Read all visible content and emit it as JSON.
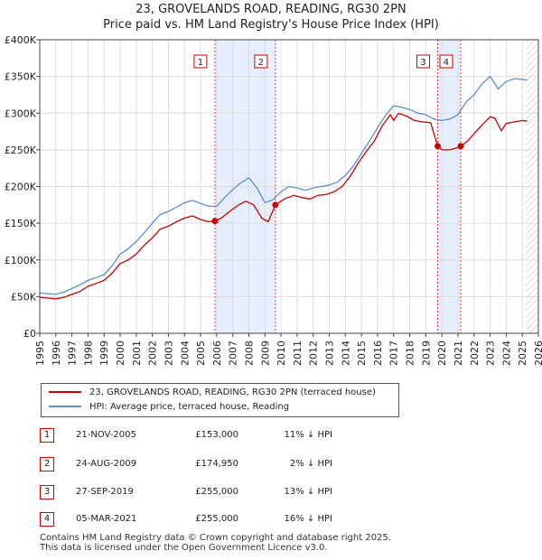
{
  "title_line1": "23, GROVELANDS ROAD, READING, RG30 2PN",
  "title_line2": "Price paid vs. HM Land Registry's House Price Index (HPI)",
  "colors": {
    "property": "#cc0000",
    "hpi": "#5b8fd0",
    "shade": "#e6eefb",
    "vline": "#dd4444",
    "grid": "#dddddd"
  },
  "chart_data": {
    "type": "line",
    "xlim": [
      1995,
      2026
    ],
    "ylim": [
      0,
      400000
    ],
    "x_ticks": [
      "1995",
      "1996",
      "1997",
      "1998",
      "1999",
      "2000",
      "2001",
      "2002",
      "2003",
      "2004",
      "2005",
      "2006",
      "2007",
      "2008",
      "2009",
      "2010",
      "2011",
      "2012",
      "2013",
      "2014",
      "2015",
      "2016",
      "2017",
      "2018",
      "2019",
      "2020",
      "2021",
      "2022",
      "2023",
      "2024",
      "2025",
      "2026"
    ],
    "y_ticks": [
      {
        "value": 0,
        "label": "£0"
      },
      {
        "value": 50000,
        "label": "£50K"
      },
      {
        "value": 100000,
        "label": "£100K"
      },
      {
        "value": 150000,
        "label": "£150K"
      },
      {
        "value": 200000,
        "label": "£200K"
      },
      {
        "value": 250000,
        "label": "£250K"
      },
      {
        "value": 300000,
        "label": "£300K"
      },
      {
        "value": 350000,
        "label": "£350K"
      },
      {
        "value": 400000,
        "label": "£400K"
      }
    ],
    "shaded_ranges": [
      [
        2005.89,
        2009.65
      ],
      [
        2019.74,
        2021.17
      ]
    ],
    "future_hatch_from": 2025.2,
    "series": [
      {
        "name": "23, GROVELANDS ROAD, READING, RG30 2PN (terraced house)",
        "color": "#cc0000",
        "x": [
          1995.0,
          1995.5,
          1996.0,
          1996.5,
          1997.0,
          1997.5,
          1998.0,
          1998.5,
          1999.0,
          1999.5,
          2000.0,
          2000.5,
          2001.0,
          2001.5,
          2002.0,
          2002.5,
          2003.0,
          2003.5,
          2004.0,
          2004.5,
          2005.0,
          2005.5,
          2005.89,
          2006.3,
          2006.8,
          2007.3,
          2007.8,
          2008.3,
          2008.8,
          2009.2,
          2009.65,
          2010.2,
          2010.8,
          2011.3,
          2011.8,
          2012.3,
          2012.8,
          2013.3,
          2013.8,
          2014.3,
          2014.8,
          2015.3,
          2015.8,
          2016.3,
          2016.8,
          2017.0,
          2017.3,
          2017.8,
          2018.3,
          2018.8,
          2019.3,
          2019.74,
          2020.0,
          2020.5,
          2021.0,
          2021.17,
          2021.6,
          2022.0,
          2022.5,
          2023.0,
          2023.3,
          2023.7,
          2024.0,
          2024.5,
          2025.0,
          2025.3
        ],
        "values": [
          49000,
          48000,
          47000,
          49000,
          53000,
          57000,
          64000,
          68000,
          72000,
          82000,
          95000,
          100000,
          108000,
          120000,
          130000,
          142000,
          146000,
          152000,
          157000,
          160000,
          155000,
          152000,
          153000,
          157000,
          166000,
          174000,
          180000,
          175000,
          157000,
          152000,
          174950,
          183000,
          188000,
          185000,
          183000,
          188000,
          189000,
          193000,
          200000,
          214000,
          232000,
          248000,
          262000,
          283000,
          298000,
          290000,
          300000,
          296000,
          290000,
          288000,
          287000,
          255000,
          250000,
          250000,
          253000,
          255000,
          262000,
          272000,
          284000,
          295000,
          293000,
          276000,
          286000,
          288000,
          290000,
          289000
        ]
      },
      {
        "name": "HPI: Average price, terraced house, Reading",
        "color": "#5b8fd0",
        "x": [
          1995.0,
          1995.5,
          1996.0,
          1996.5,
          1997.0,
          1997.5,
          1998.0,
          1998.5,
          1999.0,
          1999.5,
          2000.0,
          2000.5,
          2001.0,
          2001.5,
          2002.0,
          2002.5,
          2003.0,
          2003.5,
          2004.0,
          2004.5,
          2005.0,
          2005.5,
          2006.0,
          2006.5,
          2007.0,
          2007.5,
          2008.0,
          2008.5,
          2009.0,
          2009.5,
          2010.0,
          2010.5,
          2011.0,
          2011.5,
          2012.0,
          2012.5,
          2013.0,
          2013.5,
          2014.0,
          2014.5,
          2015.0,
          2015.5,
          2016.0,
          2016.5,
          2017.0,
          2017.5,
          2018.0,
          2018.5,
          2019.0,
          2019.5,
          2020.0,
          2020.5,
          2021.0,
          2021.5,
          2022.0,
          2022.5,
          2023.0,
          2023.5,
          2024.0,
          2024.5,
          2025.0,
          2025.3
        ],
        "values": [
          55000,
          54000,
          53000,
          56000,
          61000,
          66000,
          72000,
          76000,
          80000,
          92000,
          108000,
          115000,
          125000,
          137000,
          150000,
          162000,
          166000,
          172000,
          178000,
          181000,
          177000,
          173000,
          173000,
          185000,
          196000,
          205000,
          212000,
          198000,
          178000,
          182000,
          193000,
          200000,
          198000,
          195000,
          198000,
          200000,
          202000,
          206000,
          215000,
          228000,
          245000,
          262000,
          280000,
          297000,
          310000,
          308000,
          305000,
          300000,
          298000,
          292000,
          290000,
          292000,
          298000,
          315000,
          325000,
          340000,
          350000,
          333000,
          343000,
          347000,
          346000,
          345000
        ]
      }
    ],
    "sales": [
      {
        "label": "1",
        "x": 2005.89,
        "y": 153000
      },
      {
        "label": "2",
        "x": 2009.65,
        "y": 174950
      },
      {
        "label": "3",
        "x": 2019.74,
        "y": 255000
      },
      {
        "label": "4",
        "x": 2021.17,
        "y": 255000
      }
    ]
  },
  "legend": {
    "property": "23, GROVELANDS ROAD, READING, RG30 2PN (terraced house)",
    "hpi": "HPI: Average price, terraced house, Reading"
  },
  "sales_table": [
    {
      "num": "1",
      "date": "21-NOV-2005",
      "price": "£153,000",
      "hpi": "11% ↓ HPI"
    },
    {
      "num": "2",
      "date": "24-AUG-2009",
      "price": "£174,950",
      "hpi": "2% ↓ HPI"
    },
    {
      "num": "3",
      "date": "27-SEP-2019",
      "price": "£255,000",
      "hpi": "13% ↓ HPI"
    },
    {
      "num": "4",
      "date": "05-MAR-2021",
      "price": "£255,000",
      "hpi": "16% ↓ HPI"
    }
  ],
  "footer": {
    "line1": "Contains HM Land Registry data © Crown copyright and database right 2025.",
    "line2": "This data is licensed under the Open Government Licence v3.0."
  }
}
